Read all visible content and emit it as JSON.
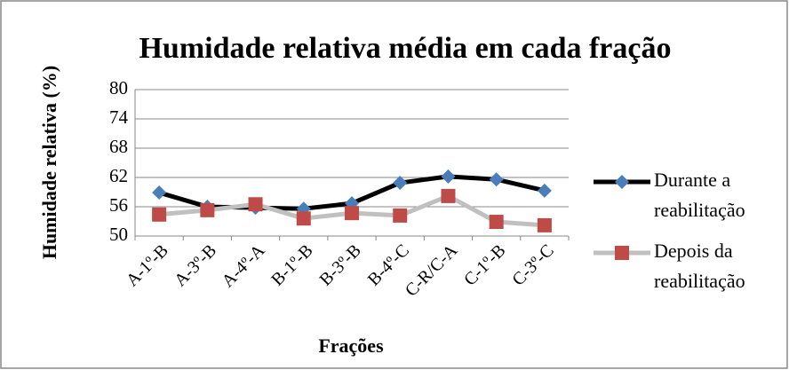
{
  "chart_data": {
    "type": "line",
    "title": "Humidade relativa média em cada fração",
    "xlabel": "Frações",
    "ylabel": "Humidade relativa (%)",
    "categories": [
      "A-1º-B",
      "A-3º-B",
      "A-4º-A",
      "B-1º-B",
      "B-3º-B",
      "B-4º-C",
      "C-R/C-A",
      "C-1º-B",
      "C-3º-C"
    ],
    "series": [
      {
        "name": "Durante a reabilitação",
        "color": "#000000",
        "marker_color": "#4a7ebb",
        "marker": "diamond",
        "values": [
          58.9,
          56.0,
          55.8,
          55.6,
          56.7,
          60.9,
          62.2,
          61.6,
          59.3
        ]
      },
      {
        "name": "Depois da reabilitação",
        "color": "#c0c0c0",
        "marker_color": "#be4b48",
        "marker": "square",
        "values": [
          54.4,
          55.3,
          56.5,
          53.6,
          54.7,
          54.2,
          58.2,
          52.9,
          52.2
        ]
      }
    ],
    "ylim": [
      50,
      80
    ],
    "yticks": [
      50,
      56,
      62,
      68,
      74,
      80
    ],
    "grid": true,
    "legend": "right"
  }
}
